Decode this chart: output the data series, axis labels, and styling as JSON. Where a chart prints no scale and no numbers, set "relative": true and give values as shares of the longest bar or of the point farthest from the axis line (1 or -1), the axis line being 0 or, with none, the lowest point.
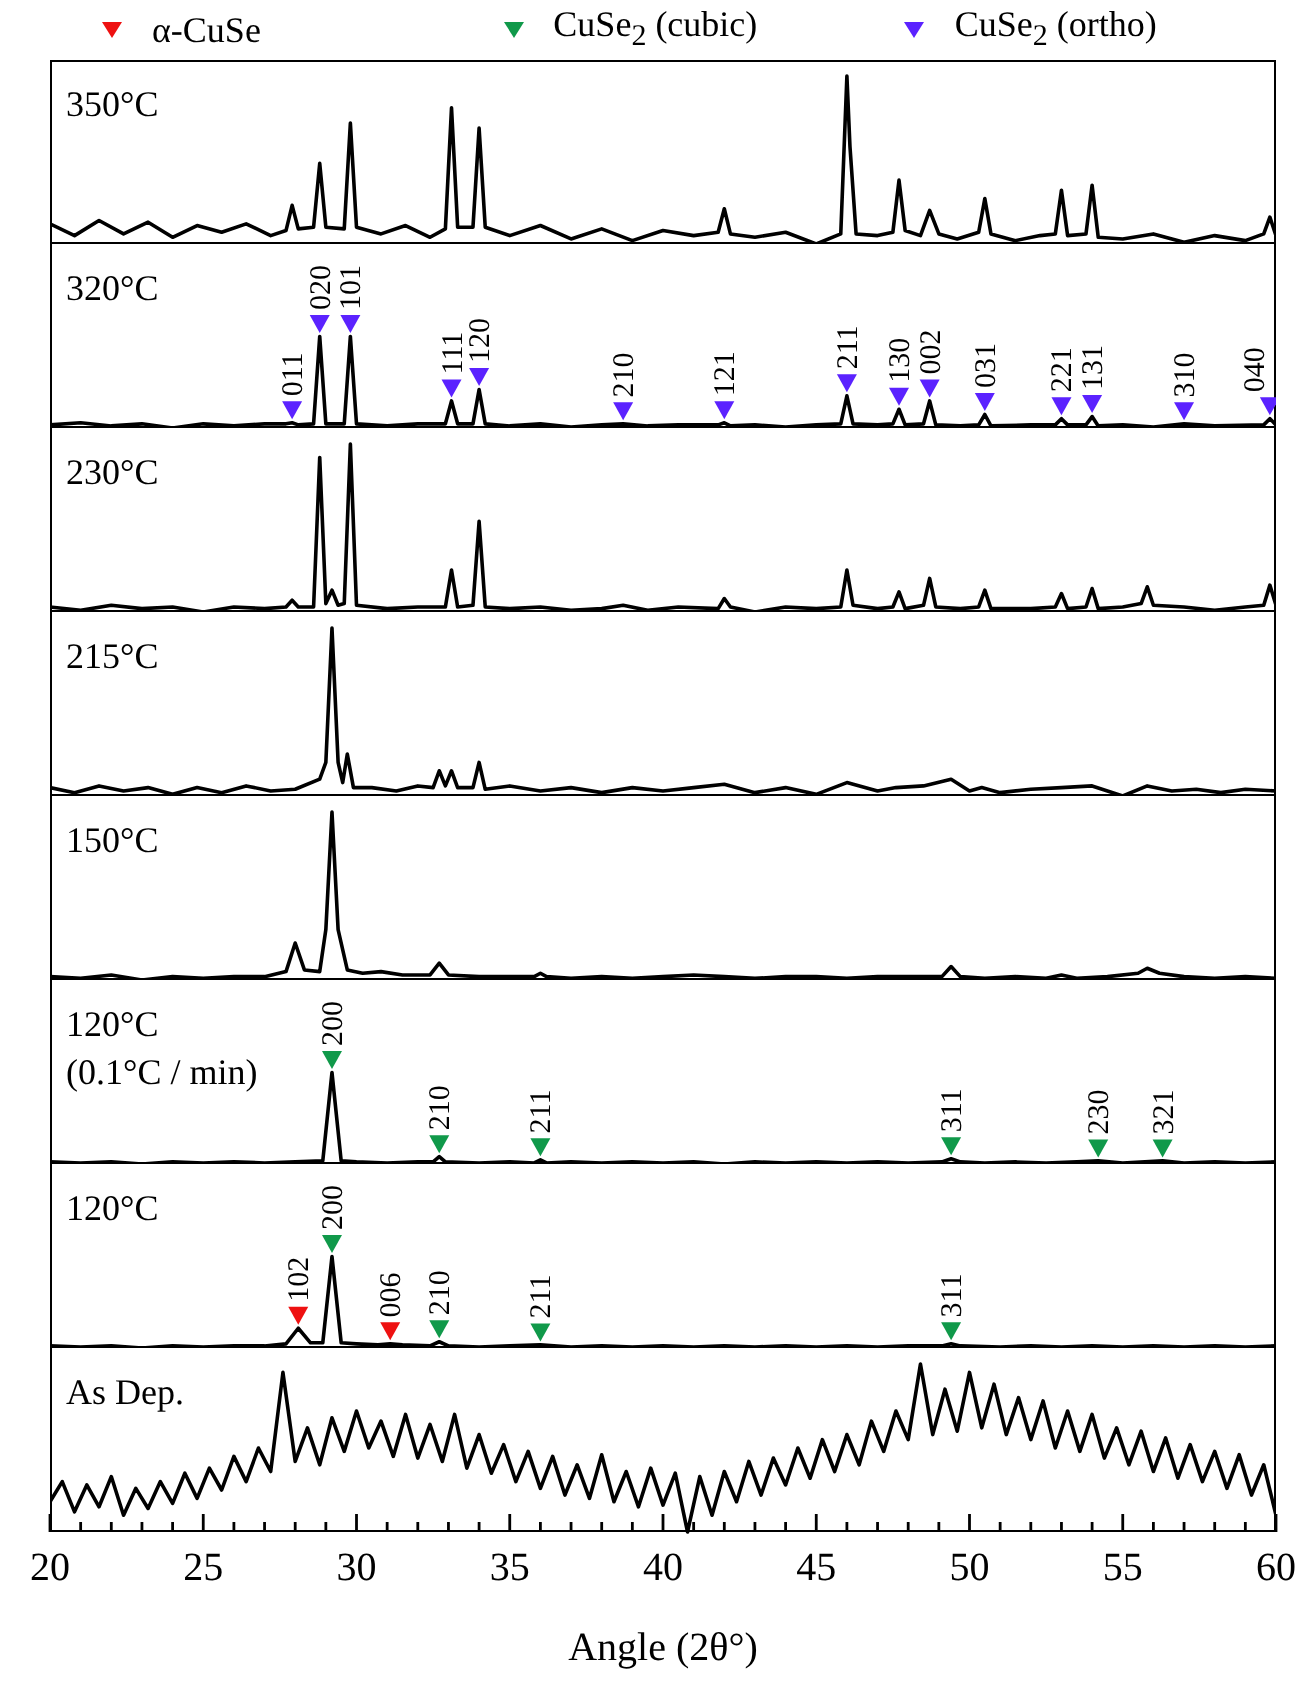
{
  "chart_data": [
    {
      "type": "line",
      "relative": true,
      "xlim": [
        20,
        60
      ],
      "tick_labels": false,
      "annotations": [
        "350°C"
      ],
      "series": [
        {
          "color": "#000000",
          "x": [
            20,
            20.8,
            21.6,
            22.4,
            23.2,
            24,
            24.8,
            25.6,
            26.4,
            27.2,
            27.7,
            27.9,
            28.1,
            28.6,
            28.8,
            29.0,
            29.6,
            29.8,
            30.0,
            30.8,
            31.6,
            32.4,
            32.9,
            33.1,
            33.3,
            33.8,
            34.0,
            34.2,
            35,
            36,
            37,
            38,
            39,
            40,
            41,
            41.8,
            42.0,
            42.2,
            43,
            44,
            45,
            45.8,
            46.0,
            46.1,
            46.3,
            47.0,
            47.5,
            47.7,
            47.9,
            48.4,
            48.7,
            49.0,
            49.6,
            50.3,
            50.5,
            50.7,
            51.5,
            52.3,
            52.8,
            53.0,
            53.2,
            53.8,
            54.0,
            54.2,
            55,
            56,
            57,
            58,
            59,
            59.6,
            59.8,
            60
          ],
          "values": [
            0.12,
            0.05,
            0.14,
            0.06,
            0.13,
            0.04,
            0.11,
            0.07,
            0.12,
            0.05,
            0.08,
            0.23,
            0.09,
            0.1,
            0.48,
            0.1,
            0.09,
            0.72,
            0.1,
            0.06,
            0.11,
            0.04,
            0.09,
            0.81,
            0.1,
            0.1,
            0.69,
            0.1,
            0.05,
            0.11,
            0.03,
            0.09,
            0.02,
            0.08,
            0.05,
            0.07,
            0.21,
            0.06,
            0.04,
            0.07,
            0.0,
            0.06,
            1.0,
            0.58,
            0.06,
            0.05,
            0.07,
            0.38,
            0.08,
            0.05,
            0.2,
            0.06,
            0.03,
            0.07,
            0.27,
            0.06,
            0.02,
            0.05,
            0.06,
            0.32,
            0.05,
            0.06,
            0.35,
            0.04,
            0.03,
            0.06,
            0.01,
            0.05,
            0.02,
            0.06,
            0.16,
            0.05
          ]
        }
      ]
    },
    {
      "type": "line",
      "relative": true,
      "xlim": [
        20,
        60
      ],
      "tick_labels": false,
      "legend": "top",
      "annotations": [
        "320°C",
        {
          "text": "011",
          "x": 27.9,
          "y": 0.17
        },
        {
          "text": "020",
          "x": 28.8,
          "y": 1.0
        },
        {
          "text": "101",
          "x": 29.8,
          "y": 1.0
        },
        {
          "text": "111",
          "x": 33.1,
          "y": 0.38
        },
        {
          "text": "120",
          "x": 34.0,
          "y": 0.49
        },
        {
          "text": "210",
          "x": 38.7,
          "y": 0.16
        },
        {
          "text": "121",
          "x": 42.0,
          "y": 0.17
        },
        {
          "text": "211",
          "x": 46.0,
          "y": 0.43
        },
        {
          "text": "130",
          "x": 47.7,
          "y": 0.3
        },
        {
          "text": "002",
          "x": 48.7,
          "y": 0.38
        },
        {
          "text": "031",
          "x": 50.5,
          "y": 0.25
        },
        {
          "text": "221",
          "x": 53.0,
          "y": 0.21
        },
        {
          "text": "131",
          "x": 54.0,
          "y": 0.23
        },
        {
          "text": "310",
          "x": 57.0,
          "y": 0.16
        },
        {
          "text": "040",
          "x": 59.8,
          "y": 0.21
        }
      ],
      "series": [
        {
          "color": "#000000",
          "x": [
            20,
            21,
            22,
            23,
            24,
            25,
            26,
            27,
            27.7,
            27.9,
            28.1,
            28.6,
            28.8,
            29.0,
            29.6,
            29.8,
            30.0,
            31,
            32,
            32.9,
            33.1,
            33.3,
            33.8,
            34.0,
            34.2,
            35,
            36,
            37,
            38,
            38.7,
            39.5,
            40.5,
            41.8,
            42.0,
            42.2,
            43,
            44,
            45,
            45.8,
            46.0,
            46.2,
            47,
            47.5,
            47.7,
            47.9,
            48.5,
            48.7,
            48.9,
            49.7,
            50.3,
            50.5,
            50.7,
            52,
            52.8,
            53.0,
            53.2,
            53.8,
            54.0,
            54.2,
            55,
            56,
            57,
            58,
            59.6,
            59.8,
            60
          ],
          "values": [
            0.03,
            0.05,
            0.02,
            0.04,
            0.0,
            0.04,
            0.02,
            0.04,
            0.04,
            0.05,
            0.03,
            0.04,
            0.88,
            0.04,
            0.04,
            0.88,
            0.04,
            0.02,
            0.04,
            0.04,
            0.26,
            0.04,
            0.04,
            0.37,
            0.04,
            0.02,
            0.04,
            0.01,
            0.03,
            0.04,
            0.02,
            0.03,
            0.03,
            0.05,
            0.02,
            0.03,
            0.01,
            0.03,
            0.04,
            0.31,
            0.04,
            0.03,
            0.04,
            0.18,
            0.03,
            0.04,
            0.26,
            0.03,
            0.02,
            0.03,
            0.13,
            0.02,
            0.03,
            0.03,
            0.09,
            0.03,
            0.03,
            0.11,
            0.02,
            0.03,
            0.01,
            0.04,
            0.02,
            0.03,
            0.09,
            0.03
          ]
        },
        {
          "type": "scatter",
          "name": "CuSe$_{2}$ (ortho)",
          "color": "#5b22ff",
          "marker": "triangle",
          "x": [
            27.9,
            28.8,
            29.8,
            33.1,
            34.0,
            38.7,
            42.0,
            46.0,
            47.7,
            48.7,
            50.5,
            53.0,
            54.0,
            57.0,
            59.8
          ],
          "values": [
            0.17,
            1.0,
            1.0,
            0.38,
            0.49,
            0.16,
            0.17,
            0.43,
            0.3,
            0.38,
            0.25,
            0.21,
            0.23,
            0.16,
            0.21
          ]
        }
      ]
    },
    {
      "type": "line",
      "relative": true,
      "xlim": [
        20,
        60
      ],
      "tick_labels": false,
      "annotations": [
        "230°C"
      ],
      "series": [
        {
          "color": "#000000",
          "x": [
            20,
            21,
            22,
            23,
            24,
            25,
            26,
            27,
            27.7,
            27.9,
            28.1,
            28.6,
            28.8,
            29.0,
            29.2,
            29.4,
            29.6,
            29.8,
            30.0,
            31,
            32,
            32.9,
            33.1,
            33.3,
            33.8,
            34.0,
            34.2,
            35,
            36,
            37,
            38,
            38.7,
            39.5,
            40.5,
            41.8,
            42.0,
            42.2,
            43,
            44,
            45,
            45.8,
            46.0,
            46.2,
            47,
            47.5,
            47.7,
            47.9,
            48.5,
            48.7,
            48.9,
            49.7,
            50.3,
            50.5,
            50.7,
            52,
            52.8,
            53.0,
            53.2,
            53.8,
            54.0,
            54.2,
            55,
            55.6,
            55.8,
            56.0,
            57,
            58,
            59,
            59.6,
            59.8,
            60
          ],
          "values": [
            0.03,
            0.01,
            0.04,
            0.02,
            0.03,
            0.0,
            0.03,
            0.02,
            0.03,
            0.07,
            0.03,
            0.03,
            0.92,
            0.05,
            0.13,
            0.04,
            0.05,
            1.0,
            0.04,
            0.02,
            0.03,
            0.03,
            0.25,
            0.03,
            0.04,
            0.54,
            0.03,
            0.02,
            0.03,
            0.01,
            0.02,
            0.04,
            0.01,
            0.03,
            0.02,
            0.08,
            0.03,
            0.0,
            0.03,
            0.02,
            0.03,
            0.25,
            0.04,
            0.02,
            0.03,
            0.12,
            0.02,
            0.04,
            0.2,
            0.03,
            0.02,
            0.03,
            0.13,
            0.02,
            0.02,
            0.03,
            0.11,
            0.02,
            0.03,
            0.14,
            0.02,
            0.03,
            0.05,
            0.15,
            0.04,
            0.03,
            0.01,
            0.03,
            0.04,
            0.16,
            0.04
          ]
        }
      ]
    },
    {
      "type": "line",
      "relative": true,
      "xlim": [
        20,
        60
      ],
      "tick_labels": false,
      "annotations": [
        "215°C"
      ],
      "series": [
        {
          "color": "#000000",
          "x": [
            20,
            20.8,
            21.6,
            22.4,
            23.2,
            24,
            24.8,
            25.6,
            26.4,
            27.2,
            28,
            28.8,
            29.0,
            29.2,
            29.4,
            29.55,
            29.7,
            29.9,
            30.5,
            31.3,
            32.0,
            32.5,
            32.7,
            32.9,
            33.1,
            33.3,
            33.8,
            34.0,
            34.2,
            35,
            36,
            37,
            38,
            39,
            40,
            41,
            42,
            43,
            44,
            45,
            46,
            47,
            47.6,
            48.5,
            49.4,
            50,
            50.4,
            51,
            52,
            53,
            54,
            55,
            55.8,
            56.6,
            57.4,
            58.2,
            59,
            60
          ],
          "values": [
            0.05,
            0.02,
            0.06,
            0.03,
            0.05,
            0.01,
            0.05,
            0.02,
            0.06,
            0.03,
            0.04,
            0.1,
            0.2,
            1.0,
            0.2,
            0.08,
            0.25,
            0.05,
            0.05,
            0.03,
            0.06,
            0.05,
            0.15,
            0.06,
            0.15,
            0.05,
            0.05,
            0.2,
            0.04,
            0.06,
            0.03,
            0.05,
            0.02,
            0.05,
            0.03,
            0.05,
            0.07,
            0.02,
            0.05,
            0.01,
            0.08,
            0.03,
            0.05,
            0.06,
            0.1,
            0.03,
            0.05,
            0.02,
            0.04,
            0.05,
            0.06,
            0.0,
            0.06,
            0.03,
            0.04,
            0.02,
            0.04,
            0.03
          ]
        }
      ]
    },
    {
      "type": "line",
      "relative": true,
      "xlim": [
        20,
        60
      ],
      "tick_labels": false,
      "annotations": [
        "150°C"
      ],
      "series": [
        {
          "color": "#000000",
          "x": [
            20,
            21,
            22,
            23,
            24,
            25,
            26,
            27,
            27.7,
            28.0,
            28.3,
            28.8,
            29.0,
            29.2,
            29.4,
            29.7,
            30.2,
            30.8,
            31.5,
            32.4,
            32.7,
            33.0,
            34,
            35,
            35.8,
            36.0,
            36.2,
            37,
            38,
            39,
            40,
            41,
            42,
            43,
            44,
            45,
            46,
            47,
            48,
            49.1,
            49.4,
            49.7,
            50.5,
            51.5,
            52.5,
            53,
            53.5,
            54.5,
            55.5,
            55.8,
            56.2,
            57,
            58,
            59,
            60
          ],
          "values": [
            0.02,
            0.01,
            0.03,
            0.0,
            0.02,
            0.01,
            0.02,
            0.02,
            0.05,
            0.22,
            0.06,
            0.05,
            0.3,
            1.0,
            0.3,
            0.06,
            0.04,
            0.05,
            0.03,
            0.03,
            0.1,
            0.03,
            0.02,
            0.02,
            0.02,
            0.04,
            0.02,
            0.01,
            0.02,
            0.01,
            0.02,
            0.03,
            0.02,
            0.01,
            0.02,
            0.02,
            0.01,
            0.02,
            0.02,
            0.02,
            0.08,
            0.02,
            0.01,
            0.02,
            0.01,
            0.03,
            0.01,
            0.02,
            0.04,
            0.07,
            0.04,
            0.02,
            0.01,
            0.02,
            0.01
          ]
        }
      ]
    },
    {
      "type": "line",
      "relative": true,
      "xlim": [
        20,
        60
      ],
      "tick_labels": false,
      "legend": "top",
      "annotations": [
        "120°C",
        "(0.1°C / min)",
        {
          "text": "200",
          "x": 29.2,
          "y": 1.0
        },
        {
          "text": "210",
          "x": 32.7,
          "y": 0.19
        },
        {
          "text": "211",
          "x": 36.0,
          "y": 0.16
        },
        {
          "text": "311",
          "x": 49.4,
          "y": 0.17
        },
        {
          "text": "230",
          "x": 54.2,
          "y": 0.15
        },
        {
          "text": "321",
          "x": 56.3,
          "y": 0.15
        }
      ],
      "series": [
        {
          "color": "#000000",
          "x": [
            20,
            21,
            22,
            23,
            24,
            25,
            26,
            27,
            28,
            28.9,
            29.2,
            29.5,
            30,
            31,
            32,
            32.5,
            32.7,
            32.9,
            34,
            35,
            35.8,
            36.0,
            36.2,
            37,
            38,
            39,
            40,
            41,
            42,
            43,
            44,
            45,
            46,
            47,
            48,
            49.1,
            49.4,
            49.7,
            50.5,
            51.5,
            52.5,
            53.5,
            54.2,
            55,
            56.3,
            57,
            58,
            59,
            60
          ],
          "values": [
            0.02,
            0.01,
            0.02,
            0.0,
            0.02,
            0.01,
            0.02,
            0.01,
            0.02,
            0.03,
            0.88,
            0.03,
            0.02,
            0.01,
            0.02,
            0.02,
            0.07,
            0.02,
            0.01,
            0.02,
            0.01,
            0.04,
            0.01,
            0.02,
            0.01,
            0.02,
            0.01,
            0.02,
            0.0,
            0.02,
            0.01,
            0.02,
            0.01,
            0.02,
            0.01,
            0.02,
            0.05,
            0.02,
            0.01,
            0.02,
            0.01,
            0.02,
            0.03,
            0.01,
            0.03,
            0.01,
            0.02,
            0.01,
            0.02
          ]
        },
        {
          "type": "scatter",
          "name": "CuSe$_{2}$ (cubic)",
          "color": "#10994a",
          "marker": "triangle",
          "x": [
            29.2,
            32.7,
            36.0,
            49.4,
            54.2,
            56.3
          ],
          "values": [
            1.0,
            0.19,
            0.16,
            0.17,
            0.15,
            0.15
          ]
        }
      ]
    },
    {
      "type": "line",
      "relative": true,
      "xlim": [
        20,
        60
      ],
      "tick_labels": false,
      "legend": "top",
      "annotations": [
        "120°C",
        {
          "text": "102",
          "x": 28.1,
          "y": 0.31
        },
        {
          "text": "200",
          "x": 29.2,
          "y": 1.0
        },
        {
          "text": "006",
          "x": 31.1,
          "y": 0.16
        },
        {
          "text": "210",
          "x": 32.7,
          "y": 0.18
        },
        {
          "text": "211",
          "x": 36.0,
          "y": 0.15
        },
        {
          "text": "311",
          "x": 49.4,
          "y": 0.16
        }
      ],
      "series": [
        {
          "color": "#000000",
          "x": [
            20,
            21,
            22,
            23,
            24,
            25,
            26,
            27,
            27.7,
            28.1,
            28.5,
            28.9,
            29.2,
            29.5,
            30,
            30.7,
            31.1,
            31.5,
            32.4,
            32.7,
            33.0,
            34,
            35,
            36.0,
            37,
            38,
            39,
            40,
            41,
            42,
            43,
            44,
            45,
            46,
            47,
            48,
            49.1,
            49.4,
            49.7,
            51,
            52,
            53,
            54,
            55,
            56,
            57,
            58,
            59,
            60
          ],
          "values": [
            0.02,
            0.01,
            0.02,
            0.0,
            0.02,
            0.01,
            0.02,
            0.02,
            0.04,
            0.19,
            0.05,
            0.05,
            0.88,
            0.05,
            0.04,
            0.03,
            0.04,
            0.03,
            0.02,
            0.06,
            0.02,
            0.01,
            0.02,
            0.03,
            0.01,
            0.02,
            0.01,
            0.02,
            0.01,
            0.02,
            0.01,
            0.02,
            0.01,
            0.02,
            0.01,
            0.02,
            0.02,
            0.04,
            0.02,
            0.01,
            0.02,
            0.01,
            0.02,
            0.01,
            0.02,
            0.01,
            0.02,
            0.01,
            0.02
          ]
        },
        {
          "type": "scatter",
          "name": "α-CuSe",
          "color": "#ee1111",
          "marker": "triangle",
          "x": [
            28.1,
            31.1
          ],
          "values": [
            0.31,
            0.16
          ]
        },
        {
          "type": "scatter",
          "name": "CuSe$_{2}$ (cubic)",
          "color": "#10994a",
          "marker": "triangle",
          "x": [
            29.2,
            32.7,
            36.0,
            49.4
          ],
          "values": [
            1.0,
            0.18,
            0.15,
            0.16
          ]
        }
      ]
    },
    {
      "type": "line",
      "relative": true,
      "xlim": [
        20,
        60
      ],
      "tick_labels": "x",
      "xlabel": "Angle (2θ°)",
      "annotations": [
        "As Dep."
      ],
      "xticks": [
        20,
        {
          "value": 21,
          "label": null
        },
        {
          "value": 22,
          "label": null
        },
        {
          "value": 23,
          "label": null
        },
        {
          "value": 24,
          "label": null
        },
        25,
        {
          "value": 26,
          "label": null
        },
        {
          "value": 27,
          "label": null
        },
        {
          "value": 28,
          "label": null
        },
        {
          "value": 29,
          "label": null
        },
        30,
        {
          "value": 31,
          "label": null
        },
        {
          "value": 32,
          "label": null
        },
        {
          "value": 33,
          "label": null
        },
        {
          "value": 34,
          "label": null
        },
        35,
        {
          "value": 36,
          "label": null
        },
        {
          "value": 37,
          "label": null
        },
        {
          "value": 38,
          "label": null
        },
        {
          "value": 39,
          "label": null
        },
        40,
        {
          "value": 41,
          "label": null
        },
        {
          "value": 42,
          "label": null
        },
        {
          "value": 43,
          "label": null
        },
        {
          "value": 44,
          "label": null
        },
        45,
        {
          "value": 46,
          "label": null
        },
        {
          "value": 47,
          "label": null
        },
        {
          "value": 48,
          "label": null
        },
        {
          "value": 49,
          "label": null
        },
        50,
        {
          "value": 51,
          "label": null
        },
        {
          "value": 52,
          "label": null
        },
        {
          "value": 53,
          "label": null
        },
        {
          "value": 54,
          "label": null
        },
        55,
        {
          "value": 56,
          "label": null
        },
        {
          "value": 57,
          "label": null
        },
        {
          "value": 58,
          "label": null
        },
        {
          "value": 59,
          "label": null
        },
        60
      ],
      "series": [
        {
          "color": "#000000",
          "x": [
            20.0,
            20.4,
            20.8,
            21.2,
            21.6,
            22.0,
            22.4,
            22.8,
            23.2,
            23.6,
            24.0,
            24.4,
            24.8,
            25.2,
            25.6,
            26.0,
            26.4,
            26.8,
            27.2,
            27.6,
            28.0,
            28.4,
            28.8,
            29.2,
            29.6,
            30.0,
            30.4,
            30.8,
            31.2,
            31.6,
            32.0,
            32.4,
            32.8,
            33.2,
            33.6,
            34.0,
            34.4,
            34.8,
            35.2,
            35.6,
            36.0,
            36.4,
            36.8,
            37.2,
            37.6,
            38.0,
            38.4,
            38.8,
            39.2,
            39.6,
            40.0,
            40.4,
            40.8,
            41.2,
            41.6,
            42.0,
            42.4,
            42.8,
            43.2,
            43.6,
            44.0,
            44.4,
            44.8,
            45.2,
            45.6,
            46.0,
            46.4,
            46.8,
            47.2,
            47.6,
            48.0,
            48.4,
            48.8,
            49.2,
            49.6,
            50.0,
            50.4,
            50.8,
            51.2,
            51.6,
            52.0,
            52.4,
            52.8,
            53.2,
            53.6,
            54.0,
            54.4,
            54.8,
            55.2,
            55.6,
            56.0,
            56.4,
            56.8,
            57.2,
            57.6,
            58.0,
            58.4,
            58.8,
            59.2,
            59.6,
            60.0
          ],
          "values": [
            0.18,
            0.3,
            0.12,
            0.28,
            0.15,
            0.33,
            0.1,
            0.26,
            0.14,
            0.3,
            0.17,
            0.35,
            0.2,
            0.38,
            0.25,
            0.45,
            0.3,
            0.5,
            0.36,
            0.95,
            0.42,
            0.62,
            0.4,
            0.68,
            0.48,
            0.72,
            0.5,
            0.66,
            0.45,
            0.7,
            0.44,
            0.64,
            0.42,
            0.7,
            0.38,
            0.58,
            0.35,
            0.52,
            0.3,
            0.48,
            0.26,
            0.45,
            0.22,
            0.4,
            0.2,
            0.46,
            0.18,
            0.36,
            0.15,
            0.38,
            0.16,
            0.35,
            0.0,
            0.33,
            0.1,
            0.36,
            0.18,
            0.42,
            0.22,
            0.44,
            0.28,
            0.5,
            0.32,
            0.55,
            0.36,
            0.58,
            0.4,
            0.66,
            0.48,
            0.72,
            0.55,
            1.0,
            0.58,
            0.85,
            0.6,
            0.95,
            0.62,
            0.88,
            0.58,
            0.8,
            0.55,
            0.78,
            0.5,
            0.72,
            0.48,
            0.7,
            0.44,
            0.62,
            0.4,
            0.6,
            0.36,
            0.56,
            0.32,
            0.52,
            0.3,
            0.48,
            0.26,
            0.46,
            0.22,
            0.4,
            0.1
          ]
        }
      ]
    }
  ]
}
